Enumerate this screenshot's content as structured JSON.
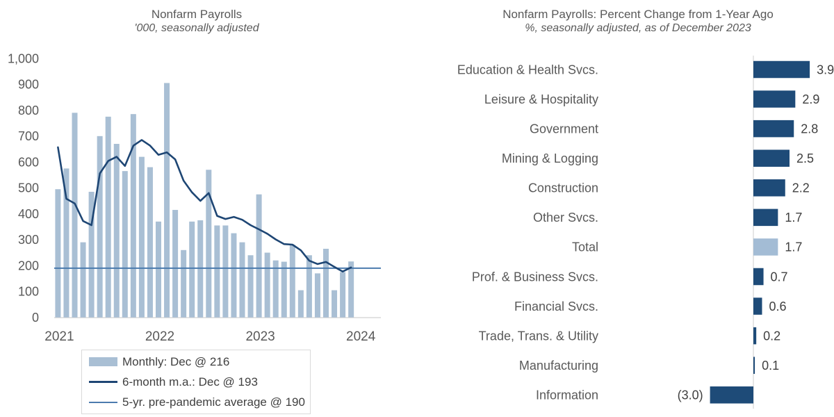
{
  "background": "#ffffff",
  "text_colors": {
    "muted_labels": "#595959",
    "dark_labels": "#404040",
    "axis_line": "#d9d9d9"
  },
  "chart_data": [
    {
      "id": "nonfarm-payrolls-monthly",
      "type": "bar",
      "title": "Nonfarm Payrolls",
      "subtitle": "'000, seasonally adjusted",
      "x_frequency": "monthly",
      "x_range": "Jan 2021 - Dec 2023",
      "x_tick_labels": [
        "2021",
        "2022",
        "2023",
        "2024"
      ],
      "ylim": [
        0,
        1000
      ],
      "y_tick_values": [
        0,
        100,
        200,
        300,
        400,
        500,
        600,
        700,
        800,
        900,
        1000
      ],
      "y_tick_labels": [
        "0",
        "100",
        "200",
        "300",
        "400",
        "500",
        "600",
        "700",
        "800",
        "900",
        "1,000"
      ],
      "grid": false,
      "legend_position": "bottom-left",
      "series": [
        {
          "name": "Monthly: Dec @ 216",
          "type": "bar",
          "color": "#a9bfd4",
          "values": [
            495,
            575,
            790,
            290,
            485,
            700,
            775,
            670,
            565,
            785,
            620,
            580,
            370,
            905,
            415,
            260,
            370,
            375,
            570,
            355,
            355,
            325,
            290,
            240,
            475,
            250,
            220,
            215,
            280,
            105,
            240,
            170,
            265,
            105,
            175,
            216
          ]
        },
        {
          "name": "6-month m.a.: Dec @ 193",
          "type": "line",
          "color": "#1e4674",
          "values": [
            657,
            458,
            440,
            372,
            356,
            556,
            604,
            620,
            585,
            663,
            685,
            663,
            628,
            637,
            610,
            528,
            483,
            450,
            480,
            392,
            380,
            388,
            377,
            356,
            340,
            323,
            301,
            283,
            281,
            259,
            219,
            206,
            214,
            195,
            177,
            193
          ]
        },
        {
          "name": "5-yr. pre-pandemic average @ 190",
          "type": "hline",
          "color": "#4b7bae",
          "value": 190
        }
      ]
    },
    {
      "id": "nonfarm-payrolls-percent-change-by-industry",
      "type": "bar-horizontal",
      "title": "Nonfarm Payrolls: Percent Change from 1-Year Ago",
      "subtitle": "%, seasonally adjusted, as of December 2023",
      "categories": [
        "Education & Health Svcs.",
        "Leisure & Hospitality",
        "Government",
        "Mining & Logging",
        "Construction",
        "Other Svcs.",
        "Total",
        "Prof. & Business Svcs.",
        "Financial Svcs.",
        "Trade, Trans. & Utility",
        "Manufacturing",
        "Information"
      ],
      "values": [
        3.9,
        2.9,
        2.8,
        2.5,
        2.2,
        1.7,
        1.7,
        0.7,
        0.6,
        0.2,
        0.1,
        -3.0
      ],
      "value_labels": [
        "3.9",
        "2.9",
        "2.8",
        "2.5",
        "2.2",
        "1.7",
        "1.7",
        "0.7",
        "0.6",
        "0.2",
        "0.1",
        "(3.0)"
      ],
      "bar_colors": [
        "#1e4b78",
        "#1e4b78",
        "#1e4b78",
        "#1e4b78",
        "#1e4b78",
        "#1e4b78",
        "#a3bcd5",
        "#1e4b78",
        "#1e4b78",
        "#1e4b78",
        "#1e4b78",
        "#1e4b78"
      ],
      "highlight_category": "Total",
      "axis_color": "#d9d9d9"
    }
  ]
}
